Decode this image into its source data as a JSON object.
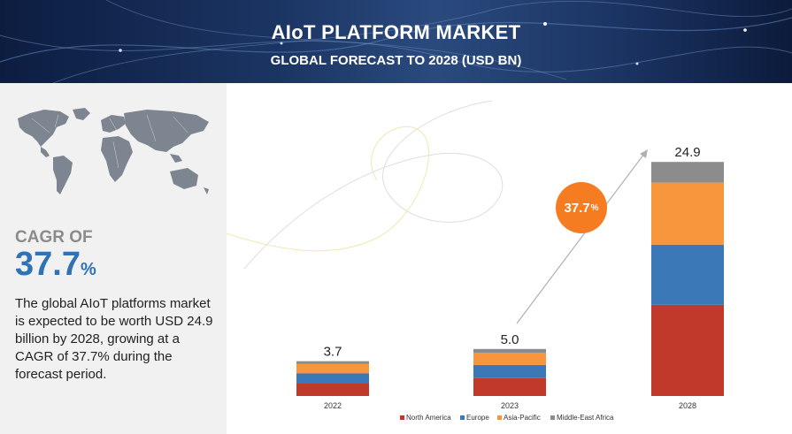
{
  "header": {
    "title": "AIoT PLATFORM MARKET",
    "subtitle": "GLOBAL FORECAST TO 2028 (USD BN)"
  },
  "left_panel": {
    "cagr_label": "CAGR OF",
    "cagr_value": "37.7",
    "cagr_unit": "%",
    "description": "The global AIoT platforms market is expected to be worth USD 24.9 billion by 2028, growing at a CAGR of 37.7% during the forecast period."
  },
  "chart_data": {
    "type": "bar",
    "stacked": true,
    "categories": [
      "2022",
      "2023",
      "2028"
    ],
    "totals": [
      3.7,
      5.0,
      24.9
    ],
    "total_labels": [
      "3.7",
      "5.0",
      "24.9"
    ],
    "series": [
      {
        "name": "North America",
        "color": "#c0392b",
        "values": [
          1.4,
          1.9,
          9.7
        ]
      },
      {
        "name": "Europe",
        "color": "#3a78b7",
        "values": [
          1.0,
          1.4,
          6.4
        ]
      },
      {
        "name": "Asia-Pacific",
        "color": "#f7963c",
        "values": [
          1.0,
          1.3,
          6.6
        ]
      },
      {
        "name": "Middle-East Africa",
        "color": "#8c8c8c",
        "values": [
          0.3,
          0.4,
          2.2
        ]
      }
    ],
    "ylim": [
      0,
      26
    ],
    "grid": false,
    "legend_position": "bottom",
    "annotation": {
      "value": "37.7",
      "unit": "%",
      "color": "#f57c20"
    }
  }
}
